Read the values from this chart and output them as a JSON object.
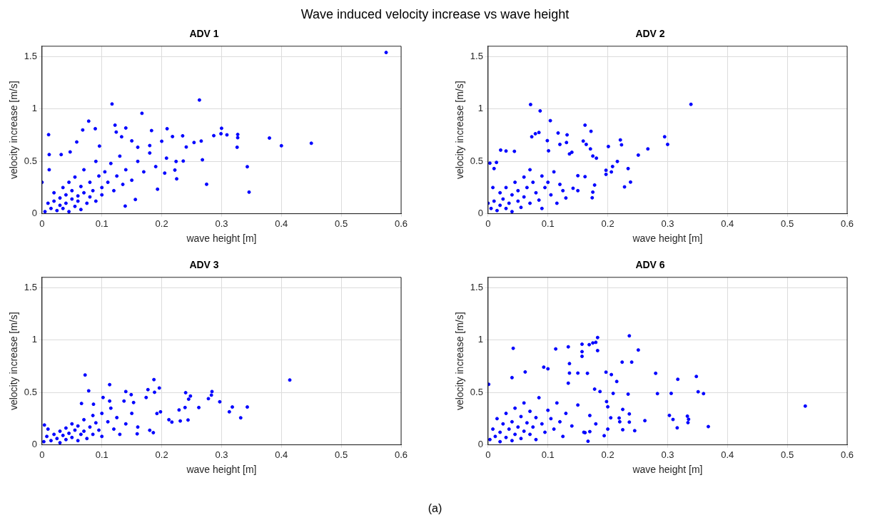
{
  "chart_data": [
    {
      "type": "other",
      "title": "Wave induced velocity increase vs wave height",
      "annotations": [
        "(a)"
      ]
    },
    {
      "type": "scatter",
      "title": "ADV 1",
      "xlabel": "wave height [m]",
      "ylabel": "velocity increase [m/s]",
      "color": "#0000ff",
      "marker": "circle",
      "grid": true,
      "xlim": [
        0,
        0.6
      ],
      "ylim": [
        0,
        1.6
      ],
      "xticks": [
        0,
        0.1,
        0.2,
        0.3,
        0.4,
        0.5,
        0.6
      ],
      "yticks": [
        0,
        0.5,
        1,
        1.5
      ],
      "x": [
        0.575,
        0.263,
        0.117,
        0.167,
        0.078,
        0.011,
        0.089,
        0.068,
        0.122,
        0.14,
        0.209,
        0.3,
        0.299,
        0.327,
        0.327,
        0.326,
        0.38,
        0.4,
        0.45,
        0.343,
        0.346,
        0.275,
        0.287,
        0.309,
        0.268,
        0.254,
        0.266,
        0.235,
        0.241,
        0.236,
        0.225,
        0.222,
        0.224,
        0.218,
        0.205,
        0.2,
        0.193,
        0.183,
        0.208,
        0.18,
        0.156,
        0.139,
        0.16,
        0.15,
        0.124,
        0.133,
        0.096,
        0.058,
        0.012,
        0.032,
        0.047,
        0.005,
        0.01,
        0.015,
        0.02,
        0.02,
        0.025,
        0.03,
        0.03,
        0.035,
        0.035,
        0.04,
        0.04,
        0.045,
        0.045,
        0.05,
        0.05,
        0.055,
        0.055,
        0.06,
        0.06,
        0.065,
        0.065,
        0.07,
        0.07,
        0.075,
        0.08,
        0.08,
        0.085,
        0.09,
        0.09,
        0.095,
        0.1,
        0.1,
        0.105,
        0.11,
        0.115,
        0.12,
        0.125,
        0.13,
        0.135,
        0.14,
        0.15,
        0.16,
        0.17,
        0.18,
        0.19,
        0.0,
        0.012
      ],
      "values": [
        1.54,
        1.086,
        1.048,
        0.959,
        0.884,
        0.755,
        0.812,
        0.8,
        0.846,
        0.819,
        0.812,
        0.816,
        0.764,
        0.757,
        0.726,
        0.635,
        0.723,
        0.649,
        0.673,
        0.449,
        0.206,
        0.281,
        0.746,
        0.753,
        0.515,
        0.68,
        0.694,
        0.744,
        0.637,
        0.503,
        0.333,
        0.417,
        0.499,
        0.737,
        0.388,
        0.692,
        0.234,
        0.794,
        0.531,
        0.651,
        0.136,
        0.073,
        0.635,
        0.696,
        0.78,
        0.735,
        0.646,
        0.685,
        0.565,
        0.565,
        0.59,
        0.02,
        0.1,
        0.05,
        0.2,
        0.12,
        0.03,
        0.15,
        0.08,
        0.25,
        0.05,
        0.18,
        0.1,
        0.3,
        0.02,
        0.14,
        0.22,
        0.07,
        0.35,
        0.17,
        0.12,
        0.26,
        0.04,
        0.2,
        0.42,
        0.1,
        0.3,
        0.16,
        0.22,
        0.5,
        0.12,
        0.36,
        0.25,
        0.18,
        0.4,
        0.3,
        0.48,
        0.22,
        0.36,
        0.55,
        0.28,
        0.42,
        0.32,
        0.5,
        0.4,
        0.58,
        0.45,
        0.3,
        0.42
      ]
    },
    {
      "type": "scatter",
      "title": "ADV 2",
      "xlabel": "wave height [m]",
      "ylabel": "velocity increase [m/s]",
      "color": "#0000ff",
      "marker": "circle",
      "grid": true,
      "xlim": [
        0,
        0.6
      ],
      "ylim": [
        0,
        1.6
      ],
      "xticks": [
        0,
        0.1,
        0.2,
        0.3,
        0.4,
        0.5,
        0.6
      ],
      "yticks": [
        0,
        0.5,
        1,
        1.5
      ],
      "x": [
        0.071,
        0.087,
        0.339,
        0.104,
        0.162,
        0.172,
        0.117,
        0.132,
        0.085,
        0.079,
        0.073,
        0.099,
        0.12,
        0.131,
        0.159,
        0.164,
        0.171,
        0.175,
        0.181,
        0.201,
        0.221,
        0.223,
        0.267,
        0.295,
        0.3,
        0.251,
        0.216,
        0.208,
        0.197,
        0.197,
        0.206,
        0.234,
        0.238,
        0.228,
        0.178,
        0.175,
        0.174,
        0.162,
        0.15,
        0.15,
        0.142,
        0.136,
        0.14,
        0.021,
        0.03,
        0.003,
        0.014,
        0.01,
        0.044,
        0.101,
        0.005,
        0.01,
        0.015,
        0.02,
        0.02,
        0.025,
        0.03,
        0.03,
        0.035,
        0.04,
        0.04,
        0.045,
        0.05,
        0.05,
        0.055,
        0.06,
        0.06,
        0.065,
        0.07,
        0.07,
        0.075,
        0.08,
        0.085,
        0.09,
        0.09,
        0.095,
        0.1,
        0.105,
        0.11,
        0.115,
        0.12,
        0.125,
        0.13,
        0.0,
        0.008
      ],
      "values": [
        1.043,
        0.982,
        1.045,
        0.889,
        0.846,
        0.787,
        0.771,
        0.753,
        0.776,
        0.764,
        0.735,
        0.698,
        0.662,
        0.68,
        0.694,
        0.662,
        0.619,
        0.551,
        0.531,
        0.642,
        0.705,
        0.658,
        0.619,
        0.735,
        0.662,
        0.56,
        0.499,
        0.451,
        0.415,
        0.376,
        0.399,
        0.431,
        0.302,
        0.256,
        0.274,
        0.206,
        0.152,
        0.354,
        0.363,
        0.22,
        0.243,
        0.571,
        0.587,
        0.608,
        0.599,
        0.483,
        0.49,
        0.431,
        0.596,
        0.601,
        0.05,
        0.12,
        0.03,
        0.08,
        0.2,
        0.14,
        0.05,
        0.25,
        0.1,
        0.18,
        0.02,
        0.3,
        0.12,
        0.22,
        0.06,
        0.35,
        0.16,
        0.25,
        0.1,
        0.42,
        0.3,
        0.2,
        0.13,
        0.36,
        0.05,
        0.25,
        0.3,
        0.18,
        0.4,
        0.1,
        0.28,
        0.22,
        0.15,
        0.1,
        0.25
      ]
    },
    {
      "type": "scatter",
      "title": "ADV 3",
      "xlabel": "wave height [m]",
      "ylabel": "velocity increase [m/s]",
      "color": "#0000ff",
      "marker": "circle",
      "grid": true,
      "xlim": [
        0,
        0.6
      ],
      "ylim": [
        0,
        1.6
      ],
      "xticks": [
        0,
        0.1,
        0.2,
        0.3,
        0.4,
        0.5,
        0.6
      ],
      "yticks": [
        0,
        0.5,
        1,
        1.5
      ],
      "x": [
        0.072,
        0.414,
        0.187,
        0.113,
        0.196,
        0.177,
        0.188,
        0.14,
        0.149,
        0.078,
        0.102,
        0.174,
        0.24,
        0.248,
        0.245,
        0.284,
        0.283,
        0.278,
        0.297,
        0.262,
        0.239,
        0.229,
        0.318,
        0.313,
        0.343,
        0.332,
        0.244,
        0.231,
        0.217,
        0.212,
        0.198,
        0.192,
        0.186,
        0.18,
        0.159,
        0.153,
        0.137,
        0.113,
        0.066,
        0.086,
        0.004,
        0.003,
        0.008,
        0.01,
        0.015,
        0.02,
        0.025,
        0.03,
        0.03,
        0.035,
        0.04,
        0.04,
        0.045,
        0.05,
        0.05,
        0.055,
        0.06,
        0.06,
        0.065,
        0.07,
        0.07,
        0.075,
        0.08,
        0.085,
        0.085,
        0.09,
        0.095,
        0.1,
        0.1,
        0.11,
        0.115,
        0.12,
        0.125,
        0.13,
        0.14,
        0.15,
        0.16
      ],
      "values": [
        0.667,
        0.619,
        0.623,
        0.575,
        0.543,
        0.527,
        0.502,
        0.509,
        0.479,
        0.516,
        0.452,
        0.452,
        0.498,
        0.466,
        0.436,
        0.509,
        0.475,
        0.441,
        0.411,
        0.356,
        0.356,
        0.333,
        0.361,
        0.315,
        0.361,
        0.258,
        0.237,
        0.228,
        0.217,
        0.24,
        0.315,
        0.299,
        0.116,
        0.139,
        0.105,
        0.404,
        0.418,
        0.418,
        0.395,
        0.388,
        0.189,
        0.03,
        0.08,
        0.15,
        0.04,
        0.1,
        0.06,
        0.13,
        0.02,
        0.09,
        0.16,
        0.05,
        0.11,
        0.2,
        0.07,
        0.14,
        0.04,
        0.18,
        0.1,
        0.24,
        0.13,
        0.06,
        0.17,
        0.28,
        0.1,
        0.21,
        0.14,
        0.3,
        0.08,
        0.22,
        0.35,
        0.15,
        0.26,
        0.1,
        0.2,
        0.3,
        0.17
      ]
    },
    {
      "type": "scatter",
      "title": "ADV 6",
      "xlabel": "wave height [m]",
      "ylabel": "velocity increase [m/s]",
      "color": "#0000ff",
      "marker": "circle",
      "grid": true,
      "xlim": [
        0,
        0.6
      ],
      "ylim": [
        0,
        1.6
      ],
      "xticks": [
        0,
        0.1,
        0.2,
        0.3,
        0.4,
        0.5,
        0.6
      ],
      "yticks": [
        0,
        0.5,
        1,
        1.5
      ],
      "x": [
        0.236,
        0.183,
        0.18,
        0.175,
        0.169,
        0.157,
        0.157,
        0.157,
        0.183,
        0.134,
        0.113,
        0.042,
        0.251,
        0.224,
        0.24,
        0.136,
        0.093,
        0.1,
        0.062,
        0.04,
        0.001,
        0.197,
        0.206,
        0.28,
        0.317,
        0.348,
        0.351,
        0.36,
        0.306,
        0.283,
        0.234,
        0.209,
        0.215,
        0.166,
        0.15,
        0.136,
        0.134,
        0.303,
        0.309,
        0.333,
        0.335,
        0.334,
        0.368,
        0.316,
        0.262,
        0.245,
        0.236,
        0.236,
        0.225,
        0.225,
        0.219,
        0.205,
        0.2,
        0.198,
        0.187,
        0.178,
        0.194,
        0.167,
        0.17,
        0.162,
        0.53,
        0.003,
        0.008,
        0.012,
        0.015,
        0.02,
        0.02,
        0.025,
        0.03,
        0.03,
        0.035,
        0.04,
        0.04,
        0.045,
        0.045,
        0.05,
        0.055,
        0.055,
        0.06,
        0.06,
        0.065,
        0.07,
        0.07,
        0.075,
        0.08,
        0.08,
        0.085,
        0.09,
        0.095,
        0.1,
        0.105,
        0.11,
        0.115,
        0.12,
        0.125,
        0.13,
        0.14,
        0.15,
        0.16,
        0.17,
        0.18,
        0.2,
        0.22
      ],
      "values": [
        1.041,
        1.025,
        0.979,
        0.973,
        0.957,
        0.961,
        0.89,
        0.845,
        0.9,
        0.936,
        0.916,
        0.922,
        0.906,
        0.79,
        0.79,
        0.776,
        0.742,
        0.726,
        0.696,
        0.642,
        0.578,
        0.694,
        0.671,
        0.683,
        0.626,
        0.653,
        0.507,
        0.489,
        0.491,
        0.489,
        0.484,
        0.491,
        0.605,
        0.683,
        0.685,
        0.685,
        0.589,
        0.281,
        0.242,
        0.274,
        0.244,
        0.212,
        0.174,
        0.162,
        0.231,
        0.135,
        0.295,
        0.217,
        0.338,
        0.144,
        0.256,
        0.258,
        0.363,
        0.413,
        0.509,
        0.532,
        0.087,
        0.034,
        0.126,
        0.116,
        0.37,
        0.05,
        0.15,
        0.08,
        0.25,
        0.03,
        0.12,
        0.2,
        0.07,
        0.3,
        0.15,
        0.04,
        0.22,
        0.1,
        0.35,
        0.17,
        0.27,
        0.06,
        0.13,
        0.4,
        0.21,
        0.1,
        0.32,
        0.17,
        0.26,
        0.05,
        0.45,
        0.2,
        0.12,
        0.33,
        0.25,
        0.15,
        0.4,
        0.22,
        0.08,
        0.3,
        0.18,
        0.38,
        0.12,
        0.28,
        0.2,
        0.15,
        0.22
      ]
    }
  ]
}
